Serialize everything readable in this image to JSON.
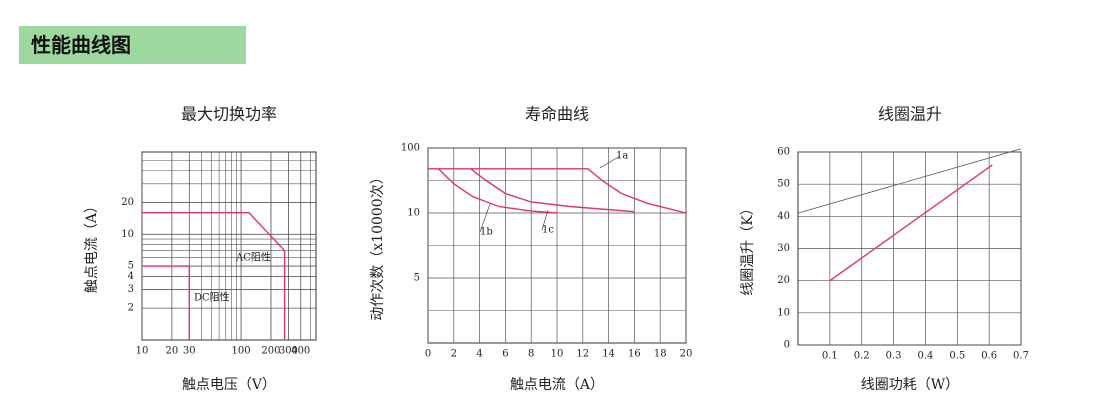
{
  "header": {
    "title": "性能曲线图"
  },
  "chart_data": [
    {
      "type": "line",
      "title": "最大切换功率",
      "xlabel": "触点电压（V）",
      "ylabel": "触点电流（A）",
      "xlog": true,
      "ylog": true,
      "xlim": [
        10,
        570
      ],
      "ylim": [
        1,
        60
      ],
      "xticks": [
        10,
        20,
        30,
        100,
        200,
        300,
        400
      ],
      "yticks": [
        2,
        3,
        4,
        5,
        10,
        20
      ],
      "series": [
        {
          "name": "AC阻性",
          "color": "#e0307a",
          "x": [
            10,
            120,
            275,
            275
          ],
          "values": [
            16,
            16,
            7,
            1
          ]
        },
        {
          "name": "DC阻性",
          "color": "#e0307a",
          "x": [
            10,
            30,
            30
          ],
          "values": [
            5,
            5,
            1
          ]
        }
      ]
    },
    {
      "type": "line",
      "title": "寿命曲线",
      "xlabel": "触点电流（A）",
      "ylabel": "动作次数（x10000次）",
      "xlim": [
        0,
        20
      ],
      "ylim": [
        0,
        3
      ],
      "xticks": [
        0,
        2,
        4,
        6,
        8,
        10,
        12,
        14,
        16,
        18,
        20
      ],
      "yticks": [
        {
          "value": 1,
          "label": "5"
        },
        {
          "value": 2,
          "label": "10"
        },
        {
          "value": 3,
          "label": "100"
        }
      ],
      "series": [
        {
          "name": "1a",
          "color": "#e0307a",
          "x": [
            0,
            12.4,
            13.5,
            15,
            17,
            20
          ],
          "values": [
            2.68,
            2.68,
            2.5,
            2.3,
            2.15,
            2.0
          ]
        },
        {
          "name": "1b",
          "color": "#e0307a",
          "x": [
            0.8,
            2,
            3.5,
            5.5,
            8,
            10
          ],
          "values": [
            2.68,
            2.45,
            2.25,
            2.1,
            2.03,
            2.0
          ]
        },
        {
          "name": "1c",
          "color": "#e0307a",
          "x": [
            3.3,
            4.5,
            6,
            8,
            11,
            16
          ],
          "values": [
            2.68,
            2.5,
            2.3,
            2.17,
            2.1,
            2.02
          ]
        }
      ]
    },
    {
      "type": "line",
      "title": "线圈温升",
      "xlabel": "线圈功耗（W）",
      "ylabel": "线圈温升（K）",
      "xlim": [
        0,
        0.7
      ],
      "ylim": [
        0,
        60
      ],
      "xticks": [
        0.1,
        0.2,
        0.3,
        0.4,
        0.5,
        0.6,
        0.7
      ],
      "yticks": [
        0,
        10,
        20,
        30,
        40,
        50,
        60
      ],
      "series": [
        {
          "color": "#e0307a",
          "x": [
            0.1,
            0.61
          ],
          "values": [
            20,
            56
          ]
        },
        {
          "color": "#555555",
          "x": [
            0,
            0.7
          ],
          "values": [
            41,
            61
          ]
        }
      ]
    }
  ]
}
